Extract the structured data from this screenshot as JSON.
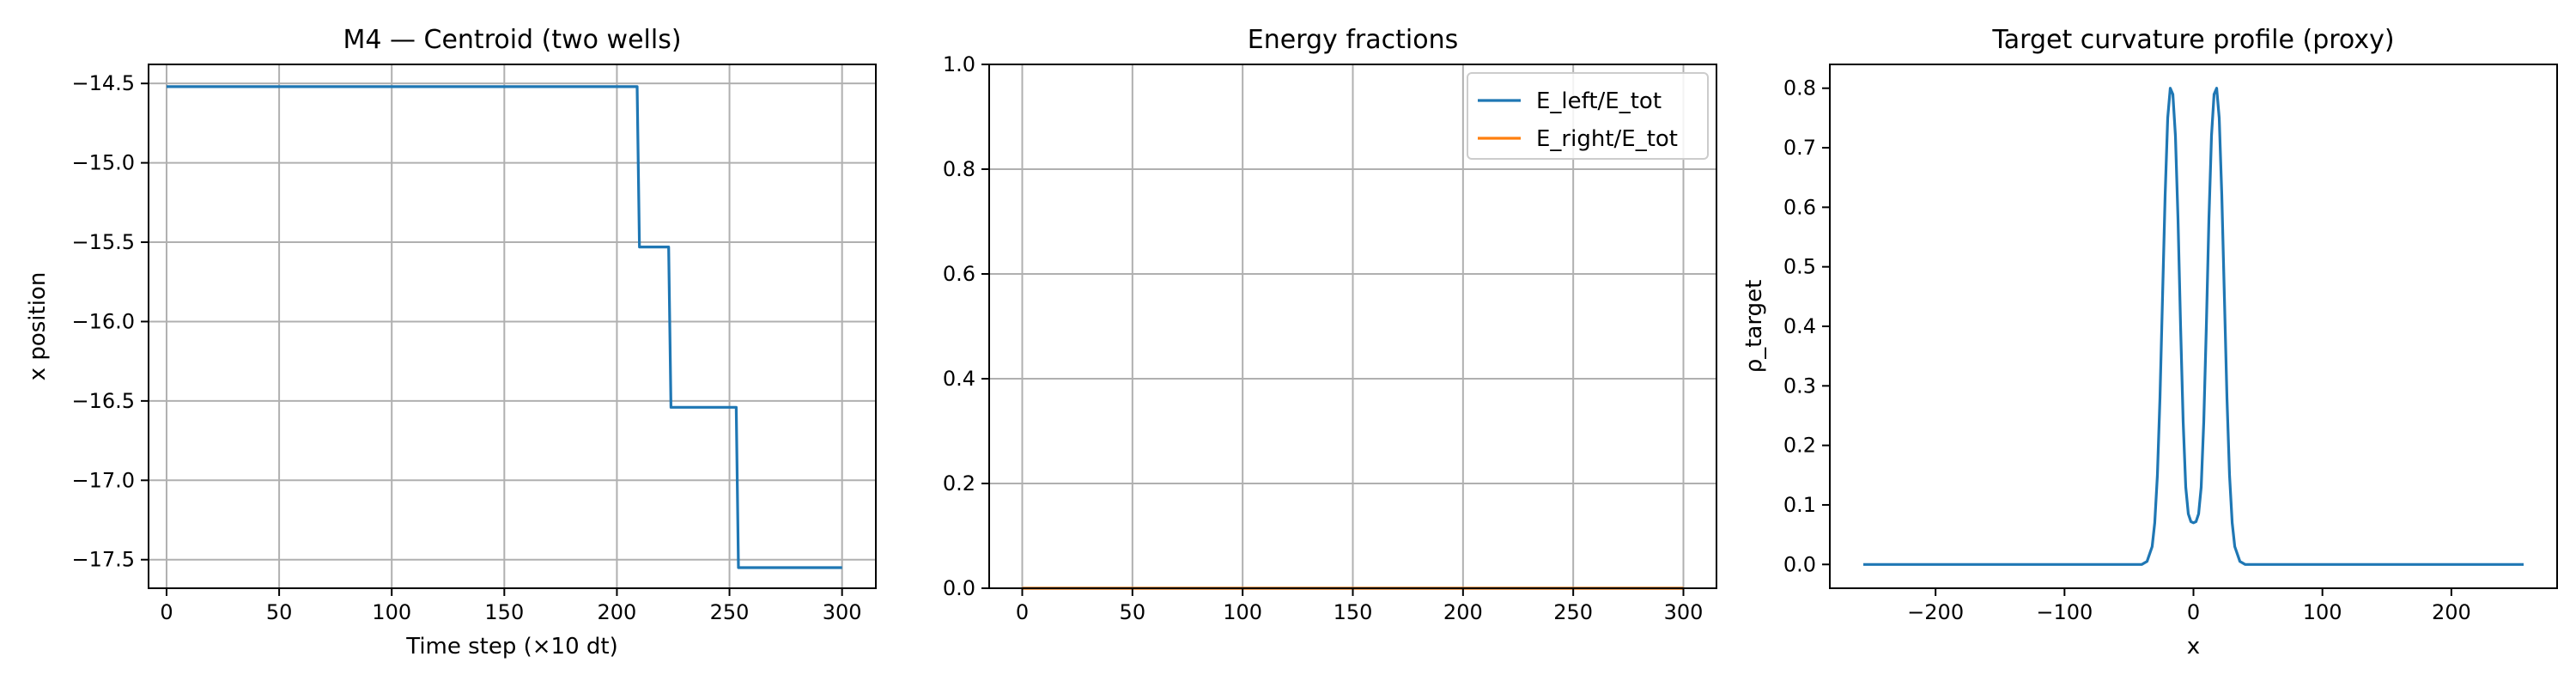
{
  "figure": {
    "colors": {
      "series_1": "#1f77b4",
      "series_2": "#ff7f0e",
      "grid": "#b0b0b0",
      "axes": "#000000"
    }
  },
  "chart_data": [
    {
      "type": "line",
      "title": "M4 — Centroid (two wells)",
      "xlabel": "Time step (×10 dt)",
      "ylabel": "x position",
      "xlim": [
        -8,
        315
      ],
      "ylim": [
        -17.68,
        -14.38
      ],
      "xticks": [
        0,
        50,
        100,
        150,
        200,
        250,
        300
      ],
      "xtick_labels": [
        "0",
        "50",
        "100",
        "150",
        "200",
        "250",
        "300"
      ],
      "yticks": [
        -14.5,
        -15.0,
        -15.5,
        -16.0,
        -16.5,
        -17.0,
        -17.5
      ],
      "ytick_labels": [
        "−14.5",
        "−15.0",
        "−15.5",
        "−16.0",
        "−16.5",
        "−17.0",
        "−17.5"
      ],
      "grid": true,
      "series": [
        {
          "color": "#1f77b4",
          "x": [
            0,
            209,
            210,
            223,
            224,
            253,
            254,
            300
          ],
          "y": [
            -14.52,
            -14.52,
            -15.53,
            -15.53,
            -16.54,
            -16.54,
            -17.55,
            -17.55
          ]
        }
      ]
    },
    {
      "type": "line",
      "title": "Energy fractions",
      "xlabel": "",
      "ylabel": "",
      "xlim": [
        -15,
        315
      ],
      "ylim": [
        0,
        1.0
      ],
      "xticks": [
        0,
        50,
        100,
        150,
        200,
        250,
        300
      ],
      "xtick_labels": [
        "0",
        "50",
        "100",
        "150",
        "200",
        "250",
        "300"
      ],
      "yticks": [
        0.0,
        0.2,
        0.4,
        0.6,
        0.8,
        1.0
      ],
      "ytick_labels": [
        "0.0",
        "0.2",
        "0.4",
        "0.6",
        "0.8",
        "1.0"
      ],
      "grid": true,
      "legend": {
        "position": "top-right",
        "entries": [
          "E_left/E_tot",
          "E_right/E_tot"
        ]
      },
      "series": [
        {
          "name": "E_left/E_tot",
          "color": "#1f77b4",
          "x": [
            0,
            300
          ],
          "y": [
            0,
            0
          ]
        },
        {
          "name": "E_right/E_tot",
          "color": "#ff7f0e",
          "x": [
            0,
            300
          ],
          "y": [
            0,
            0
          ]
        }
      ]
    },
    {
      "type": "line",
      "title": "Target curvature profile (proxy)",
      "xlabel": "x",
      "ylabel": "ρ_target",
      "xlim": [
        -282,
        282
      ],
      "ylim": [
        -0.04,
        0.84
      ],
      "xticks": [
        -200,
        -100,
        0,
        100,
        200
      ],
      "xtick_labels": [
        "−200",
        "−100",
        "0",
        "100",
        "200"
      ],
      "yticks": [
        0.0,
        0.1,
        0.2,
        0.3,
        0.4,
        0.5,
        0.6,
        0.7,
        0.8
      ],
      "ytick_labels": [
        "0.0",
        "0.1",
        "0.2",
        "0.3",
        "0.4",
        "0.5",
        "0.6",
        "0.7",
        "0.8"
      ],
      "grid": false,
      "series": [
        {
          "color": "#1f77b4",
          "x": [
            -256,
            -40,
            -36,
            -32,
            -30,
            -28,
            -26,
            -24,
            -22,
            -20,
            -18,
            -16,
            -14,
            -12,
            -10,
            -8,
            -6,
            -4,
            -2,
            0,
            2,
            4,
            6,
            8,
            10,
            12,
            14,
            16,
            18,
            20,
            22,
            24,
            26,
            28,
            30,
            32,
            36,
            40,
            256
          ],
          "y": [
            0,
            0,
            0.005,
            0.03,
            0.07,
            0.15,
            0.28,
            0.45,
            0.62,
            0.75,
            0.8,
            0.79,
            0.72,
            0.58,
            0.4,
            0.24,
            0.13,
            0.085,
            0.072,
            0.07,
            0.072,
            0.085,
            0.13,
            0.24,
            0.4,
            0.58,
            0.72,
            0.79,
            0.8,
            0.75,
            0.62,
            0.45,
            0.28,
            0.15,
            0.07,
            0.03,
            0.005,
            0,
            0
          ]
        }
      ]
    }
  ]
}
